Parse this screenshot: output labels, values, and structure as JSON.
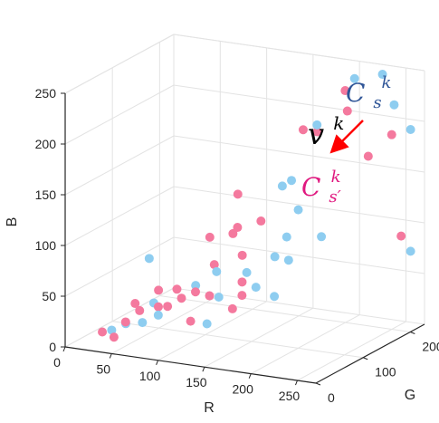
{
  "chart_data": {
    "type": "scatter",
    "xlabel": "R",
    "ylabel": "G",
    "zlabel": "B",
    "xticks": [
      "0",
      "50",
      "100",
      "150",
      "200",
      "250"
    ],
    "yticks": [
      "0",
      "100",
      "200"
    ],
    "zticks": [
      "0",
      "50",
      "100",
      "150",
      "200",
      "250"
    ],
    "xlim": [
      0,
      270
    ],
    "ylim": [
      0,
      230
    ],
    "zlim": [
      0,
      250
    ],
    "grid": true,
    "series": [
      {
        "color": "#8ECDF0",
        "points": [
          {
            "x": 45,
            "y": 10,
            "z": 20
          },
          {
            "x": 50,
            "y": 30,
            "z": 22
          },
          {
            "x": 72,
            "y": 22,
            "z": 28
          },
          {
            "x": 60,
            "y": 60,
            "z": 80
          },
          {
            "x": 70,
            "y": 50,
            "z": 40
          },
          {
            "x": 85,
            "y": 30,
            "z": 35
          },
          {
            "x": 110,
            "y": 60,
            "z": 60
          },
          {
            "x": 140,
            "y": 25,
            "z": 35
          },
          {
            "x": 140,
            "y": 50,
            "z": 55
          },
          {
            "x": 130,
            "y": 65,
            "z": 75
          },
          {
            "x": 165,
            "y": 60,
            "z": 80
          },
          {
            "x": 180,
            "y": 50,
            "z": 70
          },
          {
            "x": 180,
            "y": 90,
            "z": 90
          },
          {
            "x": 210,
            "y": 30,
            "z": 70
          },
          {
            "x": 205,
            "y": 70,
            "z": 95
          },
          {
            "x": 190,
            "y": 120,
            "z": 130
          },
          {
            "x": 175,
            "y": 125,
            "z": 100
          },
          {
            "x": 170,
            "y": 145,
            "z": 150
          },
          {
            "x": 220,
            "y": 110,
            "z": 110
          },
          {
            "x": 200,
            "y": 140,
            "z": 210
          },
          {
            "x": 155,
            "y": 155,
            "z": 140
          },
          {
            "x": 240,
            "y": 200,
            "z": 250
          },
          {
            "x": 250,
            "y": 205,
            "z": 220
          },
          {
            "x": 255,
            "y": 230,
            "z": 190
          },
          {
            "x": 255,
            "y": 230,
            "z": 70
          },
          {
            "x": 215,
            "y": 190,
            "z": 245
          }
        ]
      },
      {
        "color": "#F4799E",
        "points": [
          {
            "x": 40,
            "y": 0,
            "z": 20
          },
          {
            "x": 50,
            "y": 5,
            "z": 15
          },
          {
            "x": 60,
            "y": 10,
            "z": 30
          },
          {
            "x": 55,
            "y": 40,
            "z": 40
          },
          {
            "x": 70,
            "y": 20,
            "z": 40
          },
          {
            "x": 70,
            "y": 60,
            "z": 50
          },
          {
            "x": 80,
            "y": 40,
            "z": 40
          },
          {
            "x": 95,
            "y": 30,
            "z": 45
          },
          {
            "x": 100,
            "y": 40,
            "z": 60
          },
          {
            "x": 110,
            "y": 30,
            "z": 55
          },
          {
            "x": 110,
            "y": 90,
            "z": 100
          },
          {
            "x": 120,
            "y": 40,
            "z": 60
          },
          {
            "x": 125,
            "y": 70,
            "z": 80
          },
          {
            "x": 130,
            "y": 50,
            "z": 55
          },
          {
            "x": 130,
            "y": 10,
            "z": 40
          },
          {
            "x": 150,
            "y": 80,
            "z": 90
          },
          {
            "x": 160,
            "y": 60,
            "z": 70
          },
          {
            "x": 165,
            "y": 50,
            "z": 60
          },
          {
            "x": 170,
            "y": 20,
            "z": 55
          },
          {
            "x": 140,
            "y": 80,
            "z": 110
          },
          {
            "x": 150,
            "y": 70,
            "z": 120
          },
          {
            "x": 160,
            "y": 100,
            "z": 120
          },
          {
            "x": 180,
            "y": 150,
            "z": 200
          },
          {
            "x": 195,
            "y": 150,
            "z": 200
          },
          {
            "x": 130,
            "y": 110,
            "z": 140
          },
          {
            "x": 210,
            "y": 180,
            "z": 235
          },
          {
            "x": 220,
            "y": 165,
            "z": 220
          },
          {
            "x": 245,
            "y": 160,
            "z": 180
          },
          {
            "x": 255,
            "y": 190,
            "z": 195
          },
          {
            "x": 255,
            "y": 210,
            "z": 90
          }
        ]
      }
    ],
    "annotations": {
      "cs_base": "C",
      "cs_sub": "s",
      "cs_sup": "k",
      "cs_color": "#2F5597",
      "v_base": "v",
      "v_sup": "k",
      "v_color": "#000000",
      "csp_base": "C",
      "csp_sub": "s′",
      "csp_sup": "k",
      "csp_color": "#E0187F",
      "arrow_color": "#FF0000"
    }
  }
}
